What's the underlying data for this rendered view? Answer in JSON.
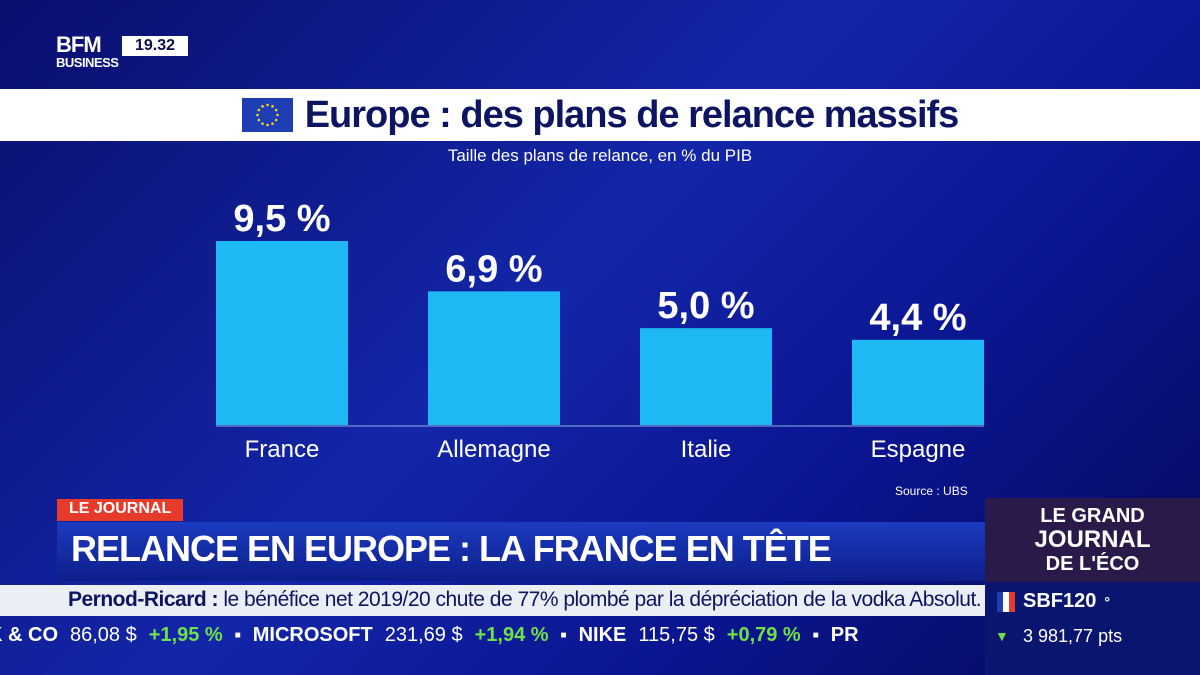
{
  "channel": {
    "logo_top": "BFM",
    "logo_bottom": "BUSINESS",
    "time": "19.32"
  },
  "header": {
    "title": "Europe : des plans de relance massifs",
    "flag_icon": "eu-flag-icon"
  },
  "chart_data": {
    "type": "bar",
    "title": "Europe : des plans de relance massifs",
    "subtitle": "Taille des plans de relance, en % du PIB",
    "categories": [
      "France",
      "Allemagne",
      "Italie",
      "Espagne"
    ],
    "values": [
      9.5,
      6.9,
      5.0,
      4.4
    ],
    "data_labels": [
      "9,5 %",
      "6,9 %",
      "5,0 %",
      "4,4 %"
    ],
    "ylim": [
      0,
      10
    ],
    "grid": false,
    "bar_color": "#1eb8f5",
    "source": "Source : UBS"
  },
  "lower_third": {
    "tag": "LE JOURNAL",
    "headline": "RELANCE EN EUROPE : LA FRANCE EN TÊTE",
    "accent": "#e63a2b"
  },
  "crawl": {
    "company": "Pernod-Ricard :",
    "text": "le bénéfice net 2019/20 chute de 77% plombé par la dépréciation de la vodka Absolut."
  },
  "ticker": [
    {
      "name": "K & CO",
      "price": "86,08 $",
      "change": "+1,95 %"
    },
    {
      "name": "MICROSOFT",
      "price": "231,69 $",
      "change": "+1,94 %"
    },
    {
      "name": "NIKE",
      "price": "115,75 $",
      "change": "+0,79 %"
    },
    {
      "name": "PR",
      "price": "",
      "change": ""
    }
  ],
  "show": {
    "line1": "LE GRAND",
    "line2": "JOURNAL",
    "line3": "DE L'ÉCO"
  },
  "index": {
    "name": "SBF120",
    "marker": "°",
    "value": "3 981,77 pts"
  }
}
